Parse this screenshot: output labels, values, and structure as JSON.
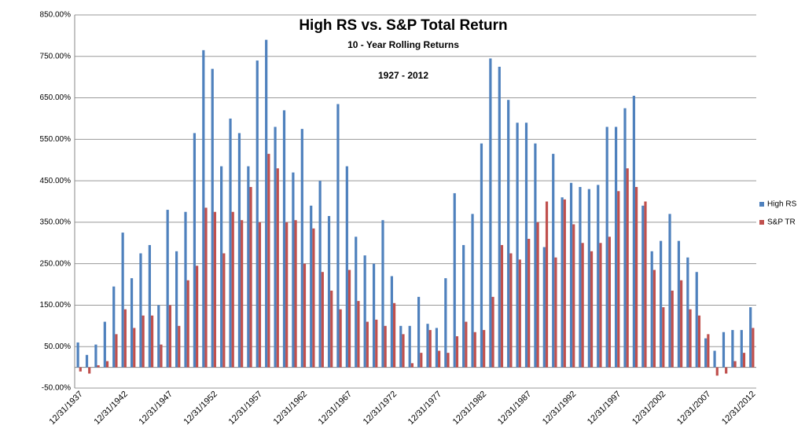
{
  "chart_data": {
    "type": "bar",
    "title": "High RS vs. S&P Total Return",
    "subtitle": "10 - Year Rolling Returns",
    "annotation": "1927 - 2012",
    "categories": [
      "12/31/1937",
      null,
      null,
      null,
      null,
      "12/31/1942",
      null,
      null,
      null,
      null,
      "12/31/1947",
      null,
      null,
      null,
      null,
      "12/31/1952",
      null,
      null,
      null,
      null,
      "12/31/1957",
      null,
      null,
      null,
      null,
      "12/31/1962",
      null,
      null,
      null,
      null,
      "12/31/1967",
      null,
      null,
      null,
      null,
      "12/31/1972",
      null,
      null,
      null,
      null,
      "12/31/1977",
      null,
      null,
      null,
      null,
      "12/31/1982",
      null,
      null,
      null,
      null,
      "12/31/1987",
      null,
      null,
      null,
      null,
      "12/31/1992",
      null,
      null,
      null,
      null,
      "12/31/1997",
      null,
      null,
      null,
      null,
      "12/31/2002",
      null,
      null,
      null,
      null,
      "12/31/2007",
      null,
      null,
      null,
      null,
      "12/31/2012"
    ],
    "series": [
      {
        "name": "High RS",
        "color": "#4f81bd",
        "values": [
          60,
          30,
          55,
          110,
          195,
          325,
          215,
          275,
          295,
          150,
          380,
          280,
          375,
          565,
          765,
          720,
          485,
          600,
          565,
          485,
          740,
          790,
          580,
          620,
          470,
          575,
          390,
          450,
          365,
          635,
          485,
          315,
          270,
          250,
          355,
          220,
          100,
          100,
          170,
          105,
          95,
          215,
          420,
          295,
          370,
          540,
          745,
          725,
          645,
          590,
          590,
          540,
          290,
          515,
          410,
          445,
          435,
          430,
          440,
          580,
          580,
          625,
          655,
          390,
          280,
          305,
          370,
          305,
          265,
          230,
          70,
          40,
          85,
          90,
          90,
          145
        ]
      },
      {
        "name": "S&P TR",
        "color": "#c0504d",
        "values": [
          -10,
          -15,
          5,
          15,
          80,
          140,
          95,
          125,
          125,
          55,
          150,
          100,
          210,
          245,
          385,
          375,
          275,
          375,
          355,
          435,
          350,
          515,
          480,
          350,
          355,
          250,
          335,
          230,
          185,
          140,
          235,
          160,
          110,
          115,
          100,
          155,
          80,
          10,
          35,
          90,
          40,
          35,
          75,
          110,
          85,
          90,
          170,
          295,
          275,
          260,
          310,
          350,
          400,
          265,
          405,
          345,
          300,
          280,
          300,
          315,
          425,
          480,
          435,
          400,
          235,
          145,
          185,
          210,
          140,
          125,
          80,
          -20,
          -15,
          15,
          35,
          95
        ]
      }
    ],
    "ylim": [
      -50,
      850
    ],
    "yticks": [
      {
        "value": -50,
        "label": "-50.00%"
      },
      {
        "value": 50,
        "label": "50.00%"
      },
      {
        "value": 150,
        "label": "150.00%"
      },
      {
        "value": 250,
        "label": "250.00%"
      },
      {
        "value": 350,
        "label": "350.00%"
      },
      {
        "value": 450,
        "label": "450.00%"
      },
      {
        "value": 550,
        "label": "550.00%"
      },
      {
        "value": 650,
        "label": "650.00%"
      },
      {
        "value": 750,
        "label": "750.00%"
      },
      {
        "value": 850,
        "label": "850.00%"
      }
    ],
    "grid": true,
    "legend": "right"
  }
}
